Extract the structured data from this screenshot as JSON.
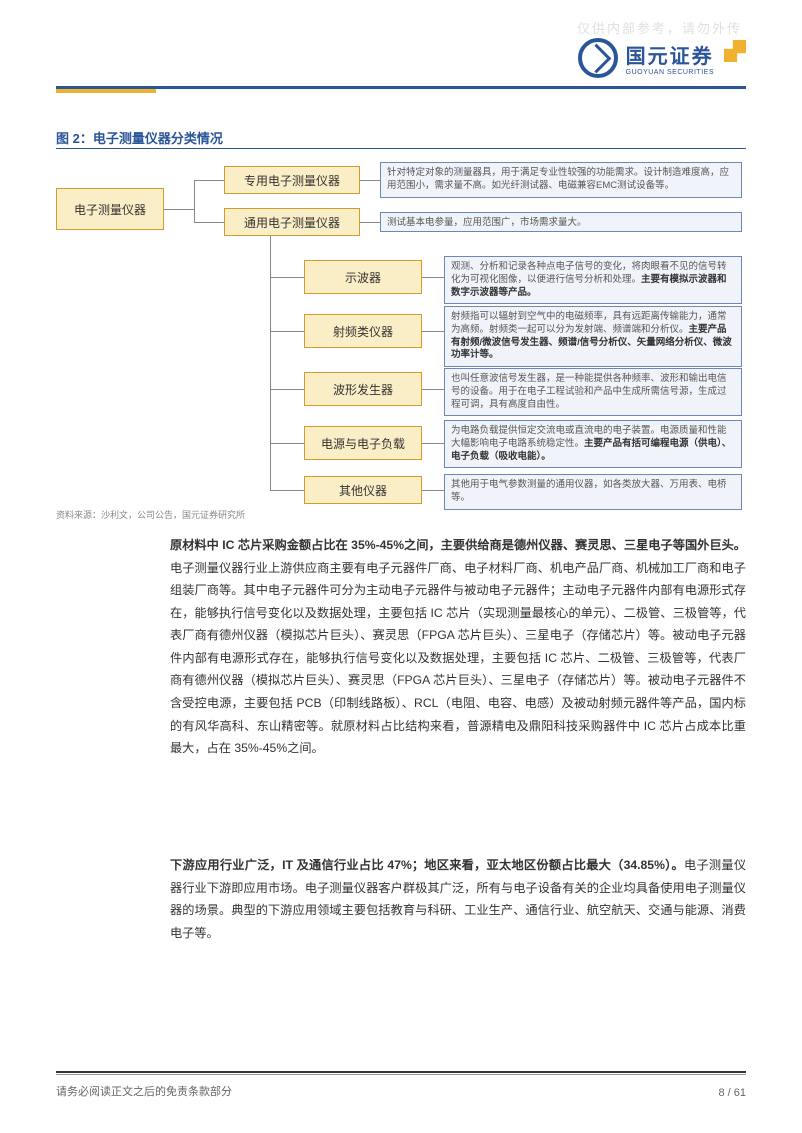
{
  "watermark": "仅供内部参考，请勿外传",
  "logo": {
    "cn": "国元证券",
    "en": "GUOYUAN SECURITIES"
  },
  "figure": {
    "title": "图 2：电子测量仪器分类情况",
    "source": "资料来源：沙利文，公司公告，国元证券研究所",
    "nodes": {
      "root": "电子测量仪器",
      "special": "专用电子测量仪器",
      "general": "通用电子测量仪器",
      "oscilloscope": "示波器",
      "rf": "射频类仪器",
      "waveform": "波形发生器",
      "power": "电源与电子负载",
      "other": "其他仪器"
    },
    "notes": {
      "special": "针对特定对象的测量器具，用于满足专业性较强的功能需求。设计制造难度高，应用范围小，需求量不高。如光纤测试器、电磁兼容EMC测试设备等。",
      "general": "测试基本电参量，应用范围广，市场需求量大。",
      "oscilloscope": "观测、分析和记录各种点电子信号的变化，将肉眼看不见的信号转化为可视化图像，以便进行信号分析和处理。<b>主要有模拟示波器和数字示波器等产品。</b>",
      "rf": "射频指可以辐射到空气中的电磁频率，具有远距离传输能力，通常为高频。射频类一起可以分为发射端、频谱端和分析仪。<b>主要产品有射频/微波信号发生器、频谱/信号分析仪、矢量网络分析仪、微波功率计等。</b>",
      "waveform": "也叫任意波信号发生器，是一种能提供各种频率、波形和输出电信号的设备。用于在电子工程试验和产品中生成所需信号源，生成过程可调，具有高度自由性。",
      "power": "为电路负载提供恒定交流电或直流电的电子装置。电源质量和性能大幅影响电子电路系统稳定性。<b>主要产品有括可编程电源（供电）、电子负载（吸收电能）。</b>",
      "other": "其他用于电气参数测量的通用仪器，如各类放大器、万用表、电桥等。"
    }
  },
  "para1": "<b>原材料中 IC 芯片采购金额占比在 35%-45%之间，主要供给商是德州仪器、赛灵思、三星电子等国外巨头。</b>电子测量仪器行业上游供应商主要有电子元器件厂商、电子材料厂商、机电产品厂商、机械加工厂商和电子组装厂商等。其中电子元器件可分为主动电子元器件与被动电子元器件；主动电子元器件内部有电源形式存在，能够执行信号变化以及数据处理，主要包括 IC 芯片（实现测量最核心的单元）、二极管、三极管等，代表厂商有德州仪器（模拟芯片巨头）、赛灵思（FPGA 芯片巨头）、三星电子（存储芯片）等。被动电子元器件内部有电源形式存在，能够执行信号变化以及数据处理，主要包括 IC 芯片、二极管、三极管等，代表厂商有德州仪器（模拟芯片巨头）、赛灵思（FPGA 芯片巨头）、三星电子（存储芯片）等。被动电子元器件不含受控电源，主要包括 PCB（印制线路板）、RCL（电阻、电容、电感）及被动射频元器件等产品，国内标的有风华高科、东山精密等。就原材料占比结构来看，普源精电及鼎阳科技采购器件中 IC 芯片占成本比重最大，占在 35%-45%之间。",
  "para2": "<b>下游应用行业广泛，IT 及通信行业占比 47%；地区来看，亚太地区份额占比最大（34.85%）。</b>电子测量仪器行业下游即应用市场。电子测量仪器客户群极其广泛，所有与电子设备有关的企业均具备使用电子测量仪器的场景。典型的下游应用领域主要包括教育与科研、工业生产、通信行业、航空航天、交通与能源、消费电子等。",
  "footer": {
    "left": "请务必阅读正文之后的免责条款部分",
    "page": "8 / 61"
  },
  "colors": {
    "brand_blue": "#2a5599",
    "brand_yellow": "#f0b030",
    "node_fill": "#faeec6",
    "node_border": "#d49a2a",
    "note_fill": "#f0f4fa",
    "note_border": "#6b88b8"
  }
}
